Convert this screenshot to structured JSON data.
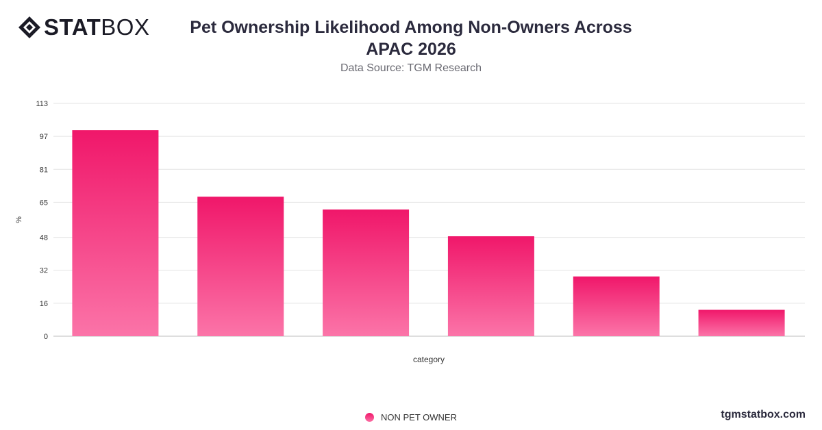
{
  "header": {
    "logo_bold": "STAT",
    "logo_light": "BOX",
    "title_line1": "Pet Ownership Likelihood Among Non-Owners Across",
    "title_line2": "APAC 2026",
    "subtitle": "Data Source: TGM Research"
  },
  "footer": {
    "brand": "tgmstatbox.com"
  },
  "colors": {
    "bar_top": "#f0176a",
    "bar_bottom": "#fb74a8",
    "grid": "#e3e3e3",
    "text": "#333333"
  },
  "chart_data": {
    "type": "bar",
    "title": "Pet Ownership Likelihood Among Non-Owners Across APAC 2026",
    "xlabel": "category",
    "ylabel": "%",
    "ylim": [
      0,
      113
    ],
    "yticks": [
      "0",
      "16",
      "32",
      "48",
      "65",
      "81",
      "97",
      "113"
    ],
    "grid": true,
    "legend_position": "bottom",
    "categories": [
      "",
      "",
      "",
      "",
      "",
      ""
    ],
    "series": [
      {
        "name": "NON PET OWNER",
        "values": [
          100,
          67.7,
          61.5,
          48.5,
          29,
          12.8
        ]
      }
    ]
  }
}
